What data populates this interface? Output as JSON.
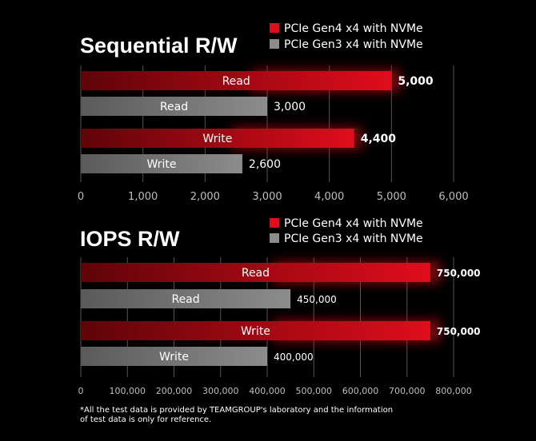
{
  "colors": {
    "background": "#000000",
    "gen4": "#e00d1c",
    "gen4_dark": "#5e0409",
    "gen3": "#8c8c8c",
    "gen3_dark": "#5a5a5a",
    "axis": "#555555",
    "tick_text": "#bfbfbf"
  },
  "chart_data": [
    {
      "type": "bar",
      "orientation": "horizontal",
      "title": "Sequential R/W",
      "legend": [
        "PCIe Gen4 x4 with NVMe",
        "PCIe Gen3 x4 with NVMe"
      ],
      "legend_position": "top-right",
      "xlim": [
        0,
        6000
      ],
      "xticks": [
        "0",
        "1,000",
        "2,000",
        "3,000",
        "4,000",
        "5,000",
        "6,000"
      ],
      "grid": true,
      "bars": [
        {
          "label": "Read",
          "series": "PCIe Gen4 x4 with NVMe",
          "value": 5000,
          "value_label": "5,000"
        },
        {
          "label": "Read",
          "series": "PCIe Gen3 x4 with NVMe",
          "value": 3000,
          "value_label": "3,000"
        },
        {
          "label": "Write",
          "series": "PCIe Gen4 x4 with NVMe",
          "value": 4400,
          "value_label": "4,400"
        },
        {
          "label": "Write",
          "series": "PCIe Gen3 x4 with NVMe",
          "value": 2600,
          "value_label": "2,600"
        }
      ]
    },
    {
      "type": "bar",
      "orientation": "horizontal",
      "title": "IOPS R/W",
      "legend": [
        "PCIe Gen4 x4 with NVMe",
        "PCIe Gen3 x4 with NVMe"
      ],
      "legend_position": "top-right",
      "xlim": [
        0,
        800000
      ],
      "xticks": [
        "0",
        "100,000",
        "200,000",
        "300,000",
        "400,000",
        "500,000",
        "600,000",
        "700,000",
        "800,000"
      ],
      "grid": true,
      "bars": [
        {
          "label": "Read",
          "series": "PCIe Gen4 x4 with NVMe",
          "value": 750000,
          "value_label": "750,000"
        },
        {
          "label": "Read",
          "series": "PCIe Gen3 x4 with NVMe",
          "value": 450000,
          "value_label": "450,000"
        },
        {
          "label": "Write",
          "series": "PCIe Gen4 x4 with NVMe",
          "value": 750000,
          "value_label": "750,000"
        },
        {
          "label": "Write",
          "series": "PCIe Gen3 x4 with NVMe",
          "value": 400000,
          "value_label": "400,000"
        }
      ]
    }
  ],
  "footnote": "*All the test data is provided by TEAMGROUP's laboratory and the information\n  of test data is only for reference."
}
